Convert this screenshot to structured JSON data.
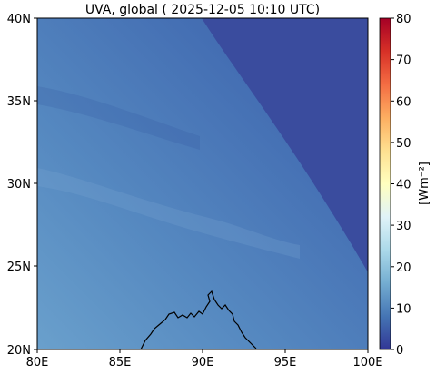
{
  "map": {
    "title": "UVA, global ( 2025-12-05 10:10 UTC)",
    "x_ticks": [
      "80E",
      "85E",
      "90E",
      "95E",
      "100E"
    ],
    "y_ticks": [
      "40N",
      "35N",
      "30N",
      "25N",
      "20N"
    ],
    "lon_range": [
      80,
      100
    ],
    "lat_range": [
      20,
      40
    ]
  },
  "colorbar": {
    "label": "[Wm⁻²]",
    "ticks": [
      "80",
      "70",
      "60",
      "50",
      "40",
      "30",
      "20",
      "10",
      "0"
    ],
    "range": [
      0,
      80
    ],
    "colormap": "RdYlBu_r",
    "colors": [
      "#313695",
      "#4575b4",
      "#74add1",
      "#abd9e9",
      "#e0f3f8",
      "#ffffbf",
      "#fee090",
      "#fdae61",
      "#f46d43",
      "#d73027",
      "#a50026"
    ]
  },
  "colors": {
    "dark_region": "#3a4c9e",
    "field_light": "#5f93c4",
    "field_mid": "#4c7dbb",
    "field_dark": "#3c5ea8",
    "coastline": "#000000"
  }
}
